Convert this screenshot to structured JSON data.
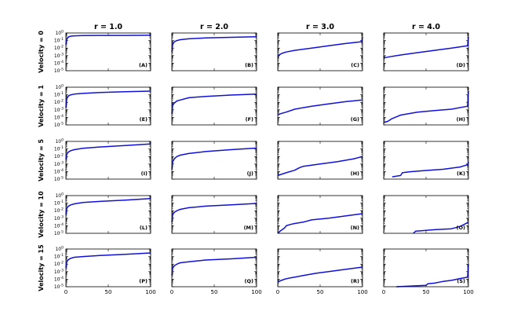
{
  "chart_data": {
    "type": "line",
    "layout": "grid",
    "rows": 5,
    "cols": 4,
    "column_titles": [
      "r = 1.0",
      "r = 2.0",
      "r = 3.0",
      "r = 4.0"
    ],
    "row_labels": [
      "Velocity = 0",
      "Velocity = 1",
      "Velocity = 5",
      "Velocity = 10",
      "Velocity = 15"
    ],
    "yscale": "log",
    "ylim": [
      1e-05,
      1
    ],
    "xlim": [
      0,
      100
    ],
    "x_ticks": [
      "0",
      "50",
      "100"
    ],
    "y_ticks": [
      {
        "base": "10",
        "exp": "0"
      },
      {
        "base": "10",
        "exp": "-1"
      },
      {
        "base": "10",
        "exp": "-2"
      },
      {
        "base": "10",
        "exp": "-3"
      },
      {
        "base": "10",
        "exp": "-4"
      },
      {
        "base": "10",
        "exp": "-5"
      }
    ],
    "series_color": "#1010dd",
    "panels": [
      {
        "label": "(A)",
        "x": [
          0,
          1,
          3,
          6,
          10,
          20,
          40,
          70,
          100
        ],
        "y": [
          0.03,
          0.15,
          0.3,
          0.38,
          0.42,
          0.45,
          0.47,
          0.48,
          0.5
        ]
      },
      {
        "label": "(B)",
        "x": [
          0,
          1,
          3,
          6,
          10,
          20,
          40,
          70,
          100
        ],
        "y": [
          0.003,
          0.03,
          0.07,
          0.1,
          0.13,
          0.17,
          0.22,
          0.27,
          0.32
        ]
      },
      {
        "label": "(C)",
        "x": [
          0,
          5,
          10,
          20,
          40,
          60,
          80,
          99,
          100
        ],
        "y": [
          0.001,
          0.002,
          0.003,
          0.005,
          0.01,
          0.02,
          0.04,
          0.07,
          0.3
        ]
      },
      {
        "label": "(D)",
        "x": [
          0,
          10,
          20,
          40,
          60,
          80,
          99,
          100
        ],
        "y": [
          0.0005,
          0.0008,
          0.0012,
          0.0025,
          0.005,
          0.01,
          0.02,
          0.3
        ]
      },
      {
        "label": "(E)",
        "x": [
          0,
          1,
          3,
          6,
          10,
          20,
          40,
          70,
          100
        ],
        "y": [
          0.002,
          0.03,
          0.07,
          0.1,
          0.12,
          0.15,
          0.2,
          0.25,
          0.3
        ]
      },
      {
        "label": "(F)",
        "x": [
          0,
          1,
          3,
          6,
          10,
          20,
          40,
          70,
          100
        ],
        "y": [
          0.0003,
          0.004,
          0.008,
          0.015,
          0.02,
          0.04,
          0.06,
          0.09,
          0.12
        ]
      },
      {
        "label": "(G)",
        "x": [
          0,
          3,
          10,
          20,
          40,
          60,
          80,
          100
        ],
        "y": [
          0.0002,
          0.0003,
          0.0005,
          0.0012,
          0.003,
          0.006,
          0.012,
          0.02
        ]
      },
      {
        "label": "(H)",
        "x": [
          0,
          5,
          8,
          10,
          20,
          40,
          60,
          80,
          99,
          100
        ],
        "y": [
          2e-05,
          3e-05,
          5e-05,
          7e-05,
          0.0002,
          0.0005,
          0.0008,
          0.0012,
          0.003,
          0.3
        ]
      },
      {
        "label": "(I)",
        "x": [
          0,
          1,
          3,
          6,
          10,
          20,
          40,
          70,
          100
        ],
        "y": [
          0.004,
          0.02,
          0.04,
          0.06,
          0.08,
          0.12,
          0.18,
          0.28,
          0.45
        ]
      },
      {
        "label": "(J)",
        "x": [
          0,
          1,
          3,
          6,
          10,
          20,
          40,
          70,
          100
        ],
        "y": [
          0.0002,
          0.002,
          0.005,
          0.01,
          0.015,
          0.025,
          0.045,
          0.08,
          0.13
        ]
      },
      {
        "label": "(H)",
        "x": [
          0,
          10,
          20,
          25,
          30,
          50,
          70,
          90,
          100
        ],
        "y": [
          3e-05,
          7e-05,
          0.00015,
          0.0003,
          0.0005,
          0.001,
          0.002,
          0.005,
          0.01
        ]
      },
      {
        "label": "(K)",
        "x": [
          10,
          20,
          22,
          30,
          50,
          70,
          90,
          99,
          100
        ],
        "y": [
          2e-05,
          3e-05,
          7e-05,
          9e-05,
          0.00014,
          0.0002,
          0.0004,
          0.0008,
          0.002
        ]
      },
      {
        "label": "(L)",
        "x": [
          0,
          1,
          3,
          6,
          10,
          20,
          40,
          70,
          100
        ],
        "y": [
          0.003,
          0.02,
          0.04,
          0.06,
          0.08,
          0.12,
          0.17,
          0.25,
          0.4
        ]
      },
      {
        "label": "(M)",
        "x": [
          0,
          1,
          3,
          6,
          10,
          20,
          40,
          70,
          100
        ],
        "y": [
          0.0003,
          0.003,
          0.006,
          0.01,
          0.015,
          0.025,
          0.04,
          0.06,
          0.09
        ]
      },
      {
        "label": "(N)",
        "x": [
          0,
          3,
          8,
          10,
          15,
          20,
          30,
          40,
          60,
          80,
          100
        ],
        "y": [
          1e-05,
          2e-05,
          5e-05,
          0.0001,
          0.00015,
          0.0002,
          0.0003,
          0.0006,
          0.001,
          0.002,
          0.004
        ]
      },
      {
        "label": "(O)",
        "x": [
          35,
          38,
          40,
          60,
          80,
          90,
          95,
          100
        ],
        "y": [
          1e-05,
          2e-05,
          2e-05,
          3e-05,
          4e-05,
          8e-05,
          0.00015,
          0.0003
        ]
      },
      {
        "label": "(P)",
        "x": [
          0,
          1,
          3,
          6,
          10,
          20,
          40,
          70,
          100
        ],
        "y": [
          0.003,
          0.02,
          0.04,
          0.06,
          0.08,
          0.1,
          0.14,
          0.2,
          0.3
        ]
      },
      {
        "label": "(Q)",
        "x": [
          0,
          1,
          3,
          6,
          10,
          20,
          40,
          70,
          100
        ],
        "y": [
          0.0003,
          0.003,
          0.006,
          0.01,
          0.015,
          0.02,
          0.035,
          0.05,
          0.08
        ]
      },
      {
        "label": "(R)",
        "x": [
          0,
          3,
          8,
          15,
          30,
          45,
          60,
          80,
          100
        ],
        "y": [
          4e-05,
          6e-05,
          0.0001,
          0.00015,
          0.0003,
          0.0006,
          0.001,
          0.002,
          0.004
        ]
      },
      {
        "label": "(S)",
        "x": [
          15,
          30,
          50,
          52,
          60,
          70,
          80,
          90,
          99,
          100
        ],
        "y": [
          1e-05,
          1.2e-05,
          1.5e-05,
          2.5e-05,
          3e-05,
          5e-05,
          7e-05,
          0.00012,
          0.00018,
          0.01
        ]
      }
    ]
  }
}
